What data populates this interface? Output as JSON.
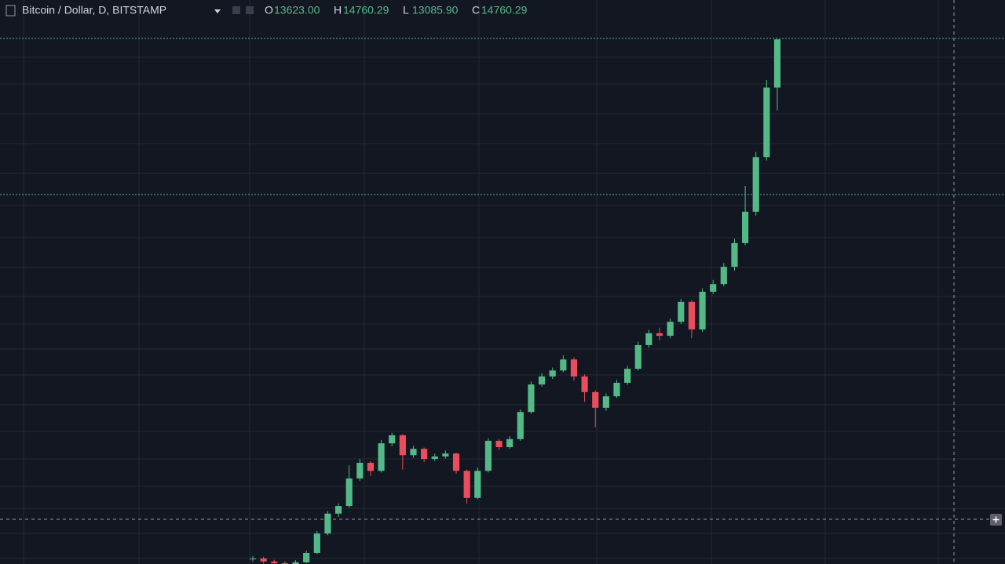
{
  "header": {
    "title": "Bitcoin / Dollar, D, BITSTAMP",
    "ohlc": [
      {
        "label": "O",
        "value": "13623.00"
      },
      {
        "label": "H",
        "value": "14760.29"
      },
      {
        "label": "L",
        "value": "13085.90"
      },
      {
        "label": "C",
        "value": "14760.29"
      }
    ]
  },
  "chart_data": {
    "type": "candlestick",
    "up_color": "#53b987",
    "down_color": "#eb4d5c",
    "ylim": [
      2370,
      15690
    ],
    "open": [
      2480,
      2500,
      2430,
      2390,
      2370,
      2410,
      2630,
      3090,
      3560,
      3740,
      4390,
      4760,
      4570,
      5220,
      5410,
      4940,
      5090,
      4850,
      4910,
      4980,
      4570,
      3930,
      4570,
      5280,
      5130,
      5320,
      5960,
      6610,
      6800,
      6940,
      7200,
      6800,
      6430,
      6060,
      6330,
      6650,
      6980,
      7540,
      7820,
      7760,
      8090,
      8560,
      7910,
      8800,
      8980,
      9390,
      9950,
      10690,
      11980,
      13623
    ],
    "high": [
      2560,
      2540,
      2470,
      2440,
      2460,
      2690,
      3150,
      3620,
      3800,
      4700,
      4850,
      4800,
      5300,
      5470,
      5440,
      5160,
      5120,
      4980,
      5050,
      5000,
      4600,
      4650,
      5340,
      5320,
      5390,
      6020,
      6680,
      6880,
      7010,
      7300,
      7250,
      6850,
      6470,
      6400,
      6720,
      7050,
      7620,
      7900,
      7950,
      8170,
      8630,
      8600,
      8880,
      9080,
      9480,
      10050,
      11300,
      12100,
      13800,
      14760.29
    ],
    "low": [
      2420,
      2380,
      2340,
      2320,
      2330,
      2390,
      2600,
      3050,
      3480,
      3700,
      4330,
      4450,
      4530,
      5150,
      4600,
      4880,
      4780,
      4800,
      4860,
      4500,
      3800,
      3900,
      4530,
      5060,
      5090,
      5280,
      5920,
      6560,
      6740,
      6900,
      6700,
      6200,
      5600,
      5990,
      6290,
      6600,
      6940,
      7480,
      7650,
      7700,
      8040,
      7700,
      7850,
      8740,
      8930,
      9300,
      9900,
      10600,
      11900,
      13085.9
    ],
    "close": [
      2500,
      2430,
      2390,
      2370,
      2410,
      2630,
      3090,
      3560,
      3740,
      4390,
      4760,
      4570,
      5220,
      5410,
      4940,
      5090,
      4850,
      4910,
      4980,
      4570,
      3930,
      4570,
      5280,
      5130,
      5320,
      5960,
      6610,
      6800,
      6940,
      7200,
      6800,
      6430,
      6060,
      6330,
      6650,
      6980,
      7540,
      7820,
      7760,
      8090,
      8560,
      7910,
      8800,
      8980,
      9390,
      9950,
      10690,
      11980,
      13623,
      14760.29
    ]
  }
}
